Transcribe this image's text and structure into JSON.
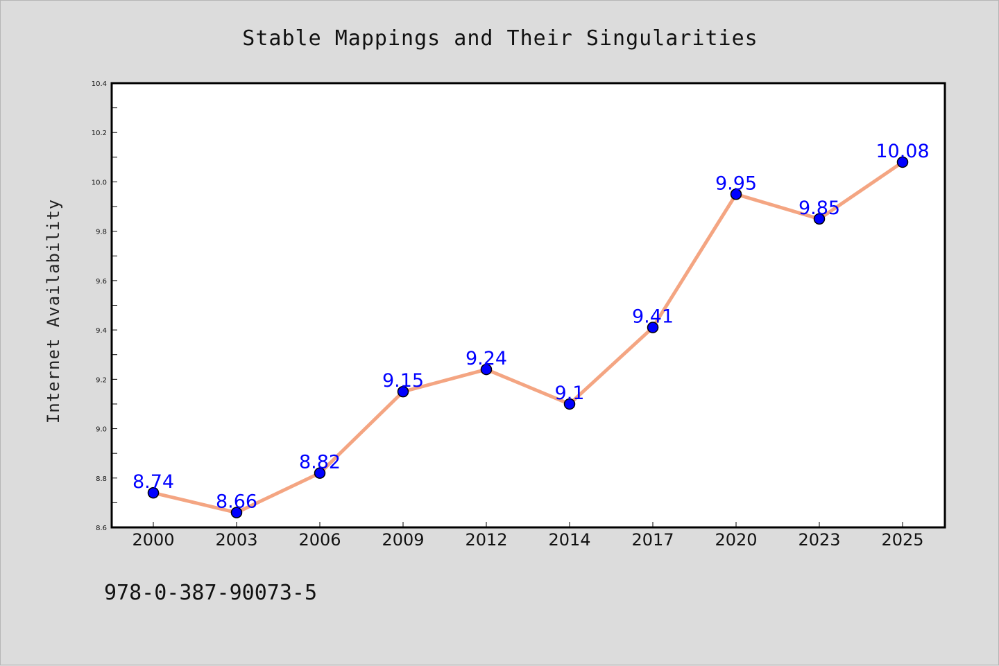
{
  "chart_data": {
    "type": "line",
    "title": "Stable Mappings and Their Singularities",
    "xlabel": "",
    "ylabel": "Internet Availability",
    "categories": [
      "2000",
      "2003",
      "2006",
      "2009",
      "2012",
      "2014",
      "2017",
      "2020",
      "2023",
      "2025"
    ],
    "series": [
      {
        "values": [
          8.74,
          8.66,
          8.82,
          9.15,
          9.24,
          9.1,
          9.41,
          9.95,
          9.85,
          10.08
        ],
        "value_labels": [
          "8.74",
          "8.66",
          "8.82",
          "9.15",
          "9.24",
          "9.1",
          "9.41",
          "9.95",
          "9.85",
          "10.08"
        ],
        "line_color": "#f4a582",
        "marker_color": "#0000ff",
        "label_color": "#0000ff"
      }
    ],
    "ylim": [
      8.6,
      10.4
    ],
    "yticks": [
      8.6,
      8.8,
      9.0,
      9.2,
      9.4,
      9.6,
      9.8,
      10.0,
      10.2,
      10.4
    ],
    "ytick_labels": [
      "8.6",
      "8.8",
      "9.0",
      "9.2",
      "9.4",
      "9.6",
      "9.8",
      "10.0",
      "10.2",
      "10.4"
    ],
    "grid": false,
    "legend": "none"
  },
  "annotation": {
    "isbn": "978-0-387-90073-5"
  },
  "colors": {
    "background": "#dcdcdc",
    "plot_background": "#ffffff",
    "axes": "#000000"
  }
}
